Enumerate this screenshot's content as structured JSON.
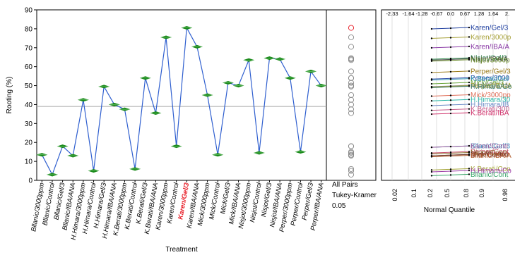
{
  "chart_data": {
    "type": "line",
    "ylabel": "Rooting (%)",
    "xlabel": "Treatment",
    "ylim": [
      0,
      90
    ],
    "yticks": [
      0,
      10,
      20,
      30,
      40,
      50,
      60,
      70,
      80,
      90
    ],
    "grand_mean": 39,
    "highlight_category": "Karen/Gel/3",
    "highlight_color": "#e8202a",
    "line_color": "#2f5fcf",
    "diamond_color": "#1a8a1a",
    "categories": [
      "Bllanic/3000ppm",
      "Bllanic/Control",
      "Bllanic/Gel/3",
      "Bllanic/IBA/ANA",
      "H.Himara/3000ppm",
      "H.Himara/Control",
      "H.Himara/Gel/3",
      "H.Himara/IBA/ANA",
      "K.Berati/3000ppm",
      "K.Berati/Control",
      "K.Berati/Gel/3",
      "K.Berati/IBA/ANA",
      "Karen/3000ppm",
      "Karen/Control",
      "Karen/Gel/3",
      "Karen/IBA/ANA",
      "Mick/3000ppm",
      "Mick/Control",
      "Mick/Gel/3",
      "Mick/IBA/ANA",
      "Nisjot/3000ppm",
      "Nisjot/Control",
      "Nisjot/Gel/3",
      "Nisjot/IBA/ANA",
      "Perper/3000ppm",
      "Perper/Control",
      "Perper/Gel/3",
      "Perper/IBA/ANA"
    ],
    "values": [
      13.5,
      3,
      18,
      13,
      42.5,
      5,
      49.5,
      40,
      37.5,
      6,
      54,
      35.5,
      75.5,
      18,
      80.5,
      70.5,
      45,
      13.5,
      51.5,
      50,
      63.5,
      14.5,
      64.5,
      64,
      54,
      15,
      57.5,
      50
    ],
    "comparison_circles": {
      "label_1": "All Pairs",
      "label_2": "Tukey-Kramer",
      "label_3": "0.05",
      "centers": [
        80.5,
        75.5,
        70.5,
        64.5,
        64,
        63.5,
        57.5,
        54,
        54,
        51.5,
        50,
        50,
        49.5,
        45,
        42.5,
        40,
        37.5,
        35.5,
        18,
        18,
        15,
        14.5,
        13.5,
        13.5,
        13,
        6,
        5,
        3
      ],
      "highlight_index": 0
    },
    "quantile_plot": {
      "xlabel": "Normal Quantile",
      "top_ticks": [
        "-2.33",
        "-1.64",
        "-1.28",
        "-0.67",
        "0.0",
        "0.67",
        "1.28",
        "1.64",
        "2."
      ],
      "bottom_ticks": [
        "0.02",
        "0.1",
        "0.2",
        "0.5",
        "0.8",
        "0.9",
        "0.98"
      ],
      "labels": [
        {
          "text": "Karen/Gel/3",
          "y": 80.5,
          "color": "#1f3f9f"
        },
        {
          "text": "Karen/3000p",
          "y": 75.5,
          "color": "#a8a23a"
        },
        {
          "text": "Karen/IBA/A",
          "y": 70.5,
          "color": "#8a3aa6"
        },
        {
          "text": "Nisjot/Gel/3",
          "y": 64.5,
          "color": "#2a8a4a"
        },
        {
          "text": "Nisjot/IBA/A",
          "y": 64,
          "color": "#4a4a4a"
        },
        {
          "text": "Nisjot/3000p",
          "y": 63.5,
          "color": "#6a8a2a"
        },
        {
          "text": "Perper/Gel/3",
          "y": 57.5,
          "color": "#9a7a1a"
        },
        {
          "text": "Perper/3000",
          "y": 54,
          "color": "#2a4aa6"
        },
        {
          "text": "K.Berati/Gel",
          "y": 53.5,
          "color": "#3a9ab6"
        },
        {
          "text": "Mick/Gel/3",
          "y": 51.5,
          "color": "#6aa63a"
        },
        {
          "text": "Mick/IBA/AN",
          "y": 50,
          "color": "#8a8a8a"
        },
        {
          "text": "Perper/IBA/A",
          "y": 49.8,
          "color": "#a6a63a"
        },
        {
          "text": "H.Himara/Ge",
          "y": 49.5,
          "color": "#3a7a6a"
        },
        {
          "text": "Mick/3000pp",
          "y": 45,
          "color": "#e0705a"
        },
        {
          "text": "H.Himara/30",
          "y": 42.5,
          "color": "#2ab6a6"
        },
        {
          "text": "H.Himara/IB",
          "y": 40,
          "color": "#6a8ac6"
        },
        {
          "text": "K.Berati/300",
          "y": 37.5,
          "color": "#c65a8a"
        },
        {
          "text": "K.Berati/IBA",
          "y": 35.5,
          "color": "#d0306a"
        },
        {
          "text": "Bllanic/Gel/3",
          "y": 18,
          "color": "#4a9ac6"
        },
        {
          "text": "Karen/Contr",
          "y": 18,
          "color": "#9a5a9a"
        },
        {
          "text": "Perper/Cont",
          "y": 15,
          "color": "#c6506a"
        },
        {
          "text": "Nisjot/Contr",
          "y": 14.5,
          "color": "#8a6a2a"
        },
        {
          "text": "Bllanic/3000",
          "y": 13.5,
          "color": "#a63a3a"
        },
        {
          "text": "Mick/Contro",
          "y": 13.5,
          "color": "#6a3a2a"
        },
        {
          "text": "Bllanic/IBA/A",
          "y": 13,
          "color": "#b05a2a"
        },
        {
          "text": "K.Berati/Con",
          "y": 6,
          "color": "#a6a63a"
        },
        {
          "text": "H.Himara/Co",
          "y": 5,
          "color": "#9a3aa6"
        },
        {
          "text": "Bllanic/Cont",
          "y": 3,
          "color": "#3aa66a"
        }
      ]
    }
  }
}
